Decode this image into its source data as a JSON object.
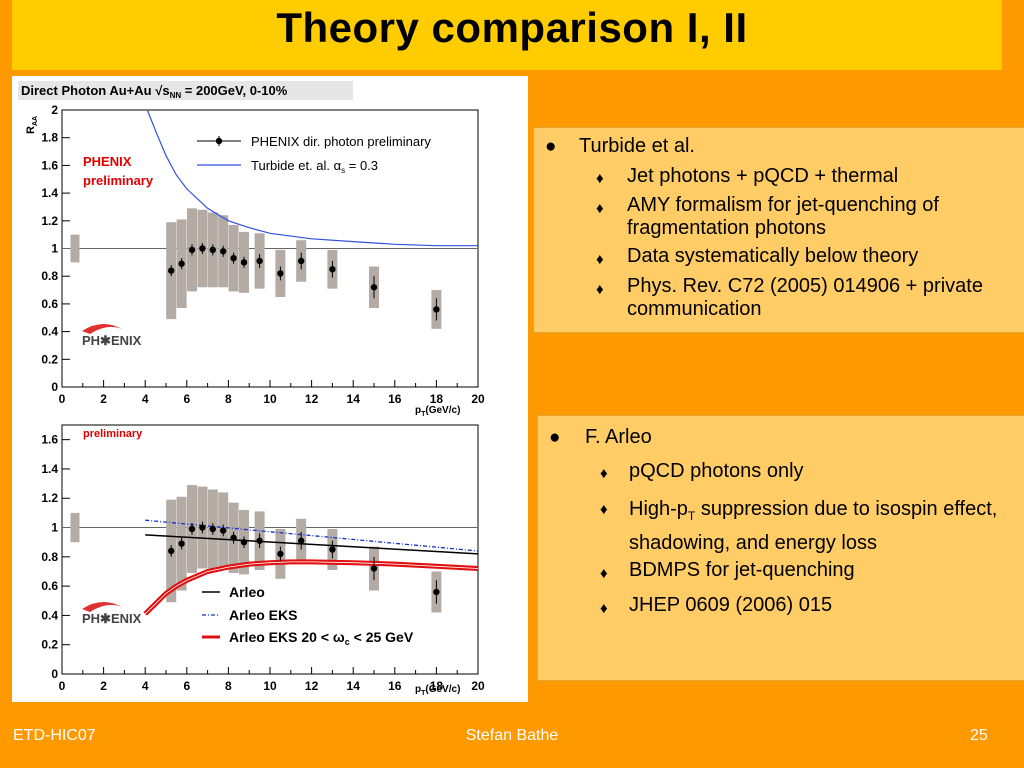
{
  "slide": {
    "title": "Theory comparison I, II",
    "footer_left": "ETD-HIC07",
    "footer_center": "Stefan Bathe",
    "footer_right": "25"
  },
  "box1": {
    "heading": "Turbide et al.",
    "items": [
      "Jet photons + pQCD + thermal",
      "AMY formalism for jet-quenching of fragmentation photons",
      "Data systematically below theory",
      "Phys. Rev. C72 (2005) 014906 + private communication"
    ]
  },
  "box2": {
    "heading": "F. Arleo",
    "item1": "pQCD photons only",
    "item2_pre": "High-p",
    "item2_sub": "T",
    "item2_post": " suppression due to isospin effect, shadowing, and energy loss",
    "item3": "BDMPS for jet-quenching",
    "item4": "JHEP 0609 (2006) 015"
  },
  "plot_labels": {
    "header_text": "Direct Photon Au+Au √s",
    "header_sub": "NN",
    "header_tail": " = 200GeV, 0-10%",
    "ylabel": "R",
    "ylabel_sub": "AA",
    "xlabel": "p",
    "xlabel_sub": "T",
    "xlabel_tail": "(GeV/c)",
    "prelim_top_1": "PHENIX",
    "prelim_top_2": "preliminary",
    "prelim_bottom": "preliminary",
    "logo": "PH✱ENIX"
  },
  "chart_data": [
    {
      "type": "scatter",
      "xlim": [
        0,
        20
      ],
      "ylim": [
        0,
        2
      ],
      "x_ticks": [
        0,
        2,
        4,
        6,
        8,
        10,
        12,
        14,
        16,
        18,
        20
      ],
      "y_ticks": [
        0,
        0.2,
        0.4,
        0.6,
        0.8,
        1,
        1.2,
        1.4,
        1.6,
        1.8,
        2
      ],
      "y_tick_labels": [
        "0",
        "0.2",
        "0.4",
        "0.6",
        "0.8",
        "1",
        "1.2",
        "1.4",
        "1.6",
        "1.8",
        "2"
      ],
      "reference_line": 1,
      "legend": [
        {
          "name": "PHENIX dir. photon preliminary",
          "style": "marker"
        },
        {
          "name": "Turbide et. al. α",
          "sub": "s",
          "tail": " = 0.3",
          "style": "line",
          "color": "#3050E0"
        }
      ],
      "data": {
        "x": [
          5.25,
          5.75,
          6.25,
          6.75,
          7.25,
          7.75,
          8.25,
          8.75,
          9.5,
          10.5,
          11.5,
          13,
          15,
          18
        ],
        "y": [
          0.84,
          0.89,
          0.99,
          1.0,
          0.99,
          0.98,
          0.93,
          0.9,
          0.91,
          0.82,
          0.91,
          0.85,
          0.72,
          0.56
        ],
        "stat_err": [
          0.04,
          0.04,
          0.04,
          0.04,
          0.04,
          0.04,
          0.04,
          0.04,
          0.05,
          0.05,
          0.06,
          0.06,
          0.08,
          0.08
        ],
        "sys_err": [
          0.35,
          0.32,
          0.3,
          0.28,
          0.27,
          0.26,
          0.24,
          0.22,
          0.2,
          0.17,
          0.15,
          0.14,
          0.15,
          0.14
        ]
      },
      "normalization_box": {
        "x": 0.6,
        "y": 1.0,
        "err": 0.1
      },
      "theory_curve": {
        "name": "Turbide et. al. α_s = 0.3",
        "x": [
          4.1,
          4.5,
          5,
          5.5,
          6,
          7,
          8,
          9,
          10,
          12,
          14,
          16,
          18,
          20
        ],
        "y": [
          2.0,
          1.85,
          1.67,
          1.53,
          1.43,
          1.29,
          1.2,
          1.15,
          1.11,
          1.07,
          1.05,
          1.03,
          1.02,
          1.02
        ]
      }
    },
    {
      "type": "scatter",
      "xlim": [
        0,
        20
      ],
      "ylim": [
        0,
        1.7
      ],
      "x_ticks": [
        0,
        2,
        4,
        6,
        8,
        10,
        12,
        14,
        16,
        18,
        20
      ],
      "y_ticks": [
        0,
        0.2,
        0.4,
        0.6,
        0.8,
        1,
        1.2,
        1.4,
        1.6
      ],
      "y_tick_labels": [
        "0",
        "0.2",
        "0.4",
        "0.6",
        "0.8",
        "1",
        "1.2",
        "1.4",
        "1.6"
      ],
      "reference_line": 1,
      "legend": [
        {
          "name": "Arleo",
          "style": "solid",
          "color": "#000000"
        },
        {
          "name": "Arleo EKS",
          "style": "dashdot",
          "color": "#1030D0"
        },
        {
          "name": "Arleo EKS 20 < ω",
          "sub": "c",
          "tail": " < 25 GeV",
          "style": "band",
          "color": "#E01010"
        }
      ],
      "data": {
        "x": [
          5.25,
          5.75,
          6.25,
          6.75,
          7.25,
          7.75,
          8.25,
          8.75,
          9.5,
          10.5,
          11.5,
          13,
          15,
          18
        ],
        "y": [
          0.84,
          0.89,
          0.99,
          1.0,
          0.99,
          0.98,
          0.93,
          0.9,
          0.91,
          0.82,
          0.91,
          0.85,
          0.72,
          0.56
        ],
        "stat_err": [
          0.04,
          0.04,
          0.04,
          0.04,
          0.04,
          0.04,
          0.04,
          0.04,
          0.05,
          0.05,
          0.06,
          0.06,
          0.08,
          0.08
        ],
        "sys_err": [
          0.35,
          0.32,
          0.3,
          0.28,
          0.27,
          0.26,
          0.24,
          0.22,
          0.2,
          0.17,
          0.15,
          0.14,
          0.15,
          0.14
        ]
      },
      "normalization_box": {
        "x": 0.6,
        "y": 1.0,
        "err": 0.1
      },
      "curves": [
        {
          "name": "Arleo",
          "x": [
            4,
            20
          ],
          "y": [
            0.95,
            0.82
          ]
        },
        {
          "name": "Arleo EKS",
          "x": [
            4,
            20
          ],
          "y": [
            1.05,
            0.84
          ]
        },
        {
          "name": "Arleo EKS 20 < ω_c < 25 GeV",
          "x": [
            4,
            4.5,
            5,
            5.5,
            6,
            7,
            8,
            9,
            10,
            11,
            12,
            14,
            16,
            18,
            20
          ],
          "y": [
            0.41,
            0.48,
            0.55,
            0.6,
            0.64,
            0.7,
            0.73,
            0.75,
            0.76,
            0.765,
            0.765,
            0.76,
            0.75,
            0.735,
            0.72
          ]
        }
      ]
    }
  ]
}
